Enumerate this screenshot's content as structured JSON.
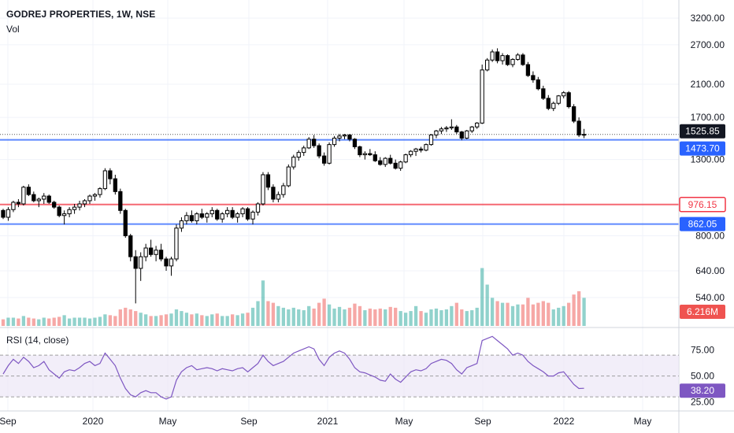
{
  "header": {
    "title": "GODREJ PROPERTIES, 1W, NSE",
    "volume_label": "Vol"
  },
  "rsi_panel": {
    "label": "RSI (14, close)",
    "current_label": "38.20",
    "band": [
      30,
      70
    ]
  },
  "colors": {
    "up": "#26a69a",
    "down": "#ef5350",
    "candle": "#000000",
    "support_line": "#2962ff",
    "resistance_line": "#f23645",
    "rsi_line": "#7e57c2",
    "rsi_band": "#ede7f6",
    "grid": "#f0f3fa",
    "text": "#131722"
  },
  "chart_data": {
    "type": "candlestick",
    "title": "GODREJ PROPERTIES, 1W, NSE",
    "price_scale": "log",
    "y_ticks": [
      "3200.00",
      "2700.00",
      "2100.00",
      "1700.00",
      "1300.00",
      "800.00",
      "640.00",
      "540.00"
    ],
    "y_tick_values": [
      3200,
      2700,
      2100,
      1700,
      1300,
      800,
      640,
      540
    ],
    "x_ticks": [
      "Sep",
      "2020",
      "May",
      "Sep",
      "2021",
      "May",
      "Sep",
      "2022",
      "May"
    ],
    "horizontal_lines": [
      {
        "label": "1473.70",
        "value": 1473.7,
        "color": "#2962ff"
      },
      {
        "label": "976.15",
        "value": 976.15,
        "color": "#f23645"
      },
      {
        "label": "862.05",
        "value": 862.05,
        "color": "#2962ff"
      }
    ],
    "last_price": {
      "label": "1525.85",
      "value": 1525.85
    },
    "volume_last_label": "6.216M",
    "candles": [
      [
        940,
        950,
        890,
        900,
        0.08
      ],
      [
        900,
        960,
        880,
        945,
        0.1
      ],
      [
        945,
        1000,
        930,
        990,
        0.1
      ],
      [
        990,
        1010,
        960,
        980,
        0.09
      ],
      [
        980,
        1100,
        970,
        1090,
        0.12
      ],
      [
        1090,
        1110,
        1030,
        1040,
        0.1
      ],
      [
        1040,
        1060,
        990,
        1000,
        0.09
      ],
      [
        1000,
        1020,
        960,
        1010,
        0.08
      ],
      [
        1010,
        1050,
        980,
        1030,
        0.1
      ],
      [
        1030,
        1040,
        980,
        990,
        0.09
      ],
      [
        990,
        1000,
        950,
        960,
        0.1
      ],
      [
        960,
        970,
        900,
        910,
        0.11
      ],
      [
        910,
        940,
        860,
        920,
        0.13
      ],
      [
        920,
        960,
        900,
        945,
        0.09
      ],
      [
        945,
        980,
        920,
        960,
        0.1
      ],
      [
        960,
        1000,
        940,
        980,
        0.1
      ],
      [
        980,
        1010,
        960,
        1000,
        0.1
      ],
      [
        1000,
        1040,
        980,
        1030,
        0.09
      ],
      [
        1030,
        1050,
        1000,
        1040,
        0.1
      ],
      [
        1040,
        1090,
        1020,
        1080,
        0.11
      ],
      [
        1080,
        1230,
        1070,
        1210,
        0.14
      ],
      [
        1210,
        1230,
        1110,
        1150,
        0.13
      ],
      [
        1150,
        1180,
        1040,
        1060,
        0.12
      ],
      [
        1060,
        1080,
        920,
        940,
        0.2
      ],
      [
        940,
        950,
        790,
        800,
        0.22
      ],
      [
        800,
        810,
        680,
        700,
        0.2
      ],
      [
        700,
        730,
        520,
        650,
        0.18
      ],
      [
        650,
        720,
        600,
        700,
        0.16
      ],
      [
        700,
        760,
        680,
        740,
        0.14
      ],
      [
        740,
        780,
        700,
        710,
        0.12
      ],
      [
        710,
        750,
        680,
        730,
        0.12
      ],
      [
        730,
        760,
        680,
        690,
        0.13
      ],
      [
        690,
        700,
        640,
        660,
        0.14
      ],
      [
        660,
        700,
        620,
        690,
        0.15
      ],
      [
        690,
        860,
        680,
        840,
        0.2
      ],
      [
        840,
        900,
        820,
        880,
        0.18
      ],
      [
        880,
        930,
        860,
        910,
        0.16
      ],
      [
        910,
        940,
        870,
        880,
        0.14
      ],
      [
        880,
        930,
        860,
        920,
        0.15
      ],
      [
        920,
        950,
        890,
        900,
        0.13
      ],
      [
        900,
        930,
        870,
        920,
        0.12
      ],
      [
        920,
        960,
        900,
        940,
        0.14
      ],
      [
        940,
        950,
        880,
        890,
        0.15
      ],
      [
        890,
        930,
        870,
        920,
        0.12
      ],
      [
        920,
        960,
        900,
        940,
        0.12
      ],
      [
        940,
        960,
        890,
        900,
        0.14
      ],
      [
        900,
        930,
        870,
        920,
        0.13
      ],
      [
        920,
        960,
        900,
        950,
        0.15
      ],
      [
        950,
        960,
        880,
        890,
        0.16
      ],
      [
        890,
        940,
        860,
        930,
        0.22
      ],
      [
        930,
        990,
        910,
        980,
        0.3
      ],
      [
        980,
        1200,
        970,
        1180,
        0.55
      ],
      [
        1180,
        1200,
        1070,
        1090,
        0.3
      ],
      [
        1090,
        1110,
        990,
        1010,
        0.28
      ],
      [
        1010,
        1060,
        990,
        1040,
        0.24
      ],
      [
        1040,
        1120,
        1020,
        1100,
        0.22
      ],
      [
        1100,
        1260,
        1090,
        1240,
        0.2
      ],
      [
        1240,
        1340,
        1220,
        1320,
        0.22
      ],
      [
        1320,
        1380,
        1290,
        1360,
        0.2
      ],
      [
        1360,
        1420,
        1330,
        1400,
        0.19
      ],
      [
        1400,
        1500,
        1390,
        1480,
        0.24
      ],
      [
        1480,
        1520,
        1400,
        1420,
        0.21
      ],
      [
        1420,
        1440,
        1310,
        1330,
        0.28
      ],
      [
        1330,
        1360,
        1250,
        1270,
        0.33
      ],
      [
        1270,
        1450,
        1260,
        1430,
        0.26
      ],
      [
        1430,
        1510,
        1410,
        1490,
        0.21
      ],
      [
        1490,
        1530,
        1460,
        1510,
        0.23
      ],
      [
        1510,
        1530,
        1480,
        1520,
        0.2
      ],
      [
        1520,
        1530,
        1460,
        1480,
        0.22
      ],
      [
        1480,
        1490,
        1390,
        1410,
        0.27
      ],
      [
        1410,
        1420,
        1320,
        1340,
        0.24
      ],
      [
        1340,
        1370,
        1300,
        1350,
        0.19
      ],
      [
        1350,
        1390,
        1330,
        1340,
        0.21
      ],
      [
        1340,
        1370,
        1280,
        1290,
        0.2
      ],
      [
        1290,
        1320,
        1250,
        1260,
        0.21
      ],
      [
        1260,
        1320,
        1240,
        1310,
        0.2
      ],
      [
        1310,
        1340,
        1260,
        1270,
        0.23
      ],
      [
        1270,
        1300,
        1220,
        1230,
        0.22
      ],
      [
        1230,
        1290,
        1210,
        1280,
        0.18
      ],
      [
        1280,
        1350,
        1270,
        1340,
        0.16
      ],
      [
        1340,
        1380,
        1320,
        1370,
        0.18
      ],
      [
        1370,
        1400,
        1330,
        1390,
        0.24
      ],
      [
        1390,
        1410,
        1360,
        1380,
        0.18
      ],
      [
        1380,
        1440,
        1370,
        1430,
        0.16
      ],
      [
        1430,
        1530,
        1420,
        1520,
        0.2
      ],
      [
        1520,
        1570,
        1490,
        1560,
        0.21
      ],
      [
        1560,
        1600,
        1530,
        1580,
        0.19
      ],
      [
        1580,
        1610,
        1550,
        1590,
        0.2
      ],
      [
        1590,
        1680,
        1570,
        1600,
        0.24
      ],
      [
        1600,
        1620,
        1530,
        1550,
        0.28
      ],
      [
        1550,
        1560,
        1470,
        1490,
        0.2
      ],
      [
        1490,
        1570,
        1480,
        1560,
        0.18
      ],
      [
        1560,
        1610,
        1540,
        1600,
        0.19
      ],
      [
        1600,
        1650,
        1580,
        1640,
        0.22
      ],
      [
        1640,
        2380,
        1630,
        2300,
        0.7
      ],
      [
        2300,
        2480,
        2280,
        2450,
        0.5
      ],
      [
        2450,
        2620,
        2420,
        2580,
        0.34
      ],
      [
        2580,
        2640,
        2400,
        2440,
        0.3
      ],
      [
        2440,
        2560,
        2380,
        2520,
        0.28
      ],
      [
        2520,
        2540,
        2360,
        2380,
        0.28
      ],
      [
        2380,
        2480,
        2340,
        2460,
        0.24
      ],
      [
        2460,
        2560,
        2440,
        2530,
        0.26
      ],
      [
        2530,
        2560,
        2360,
        2380,
        0.26
      ],
      [
        2380,
        2420,
        2200,
        2220,
        0.34
      ],
      [
        2220,
        2280,
        2120,
        2160,
        0.26
      ],
      [
        2160,
        2200,
        2020,
        2040,
        0.28
      ],
      [
        2040,
        2080,
        1900,
        1920,
        0.3
      ],
      [
        1920,
        1960,
        1780,
        1800,
        0.28
      ],
      [
        1800,
        1880,
        1770,
        1860,
        0.2
      ],
      [
        1860,
        1960,
        1840,
        1950,
        0.22
      ],
      [
        1950,
        2010,
        1920,
        1990,
        0.24
      ],
      [
        1990,
        2010,
        1800,
        1820,
        0.28
      ],
      [
        1820,
        1850,
        1640,
        1660,
        0.38
      ],
      [
        1660,
        1700,
        1500,
        1520,
        0.42
      ],
      [
        1520,
        1580,
        1490,
        1525.85,
        0.34
      ]
    ],
    "rsi": [
      52,
      60,
      66,
      62,
      68,
      64,
      58,
      60,
      64,
      56,
      52,
      48,
      54,
      56,
      55,
      58,
      62,
      64,
      60,
      62,
      72,
      66,
      60,
      48,
      38,
      32,
      30,
      34,
      36,
      34,
      34,
      30,
      28,
      30,
      46,
      54,
      58,
      60,
      56,
      57,
      58,
      57,
      55,
      57,
      56,
      55,
      57,
      58,
      54,
      58,
      62,
      70,
      64,
      60,
      62,
      64,
      68,
      72,
      74,
      76,
      78,
      76,
      66,
      60,
      68,
      72,
      74,
      72,
      66,
      58,
      54,
      53,
      51,
      49,
      46,
      45,
      52,
      47,
      44,
      49,
      54,
      56,
      55,
      57,
      62,
      64,
      66,
      65,
      62,
      56,
      52,
      58,
      60,
      62,
      84,
      86,
      88,
      84,
      80,
      76,
      70,
      72,
      70,
      64,
      60,
      57,
      54,
      50,
      50,
      53,
      54,
      48,
      42,
      38,
      38.2
    ]
  }
}
